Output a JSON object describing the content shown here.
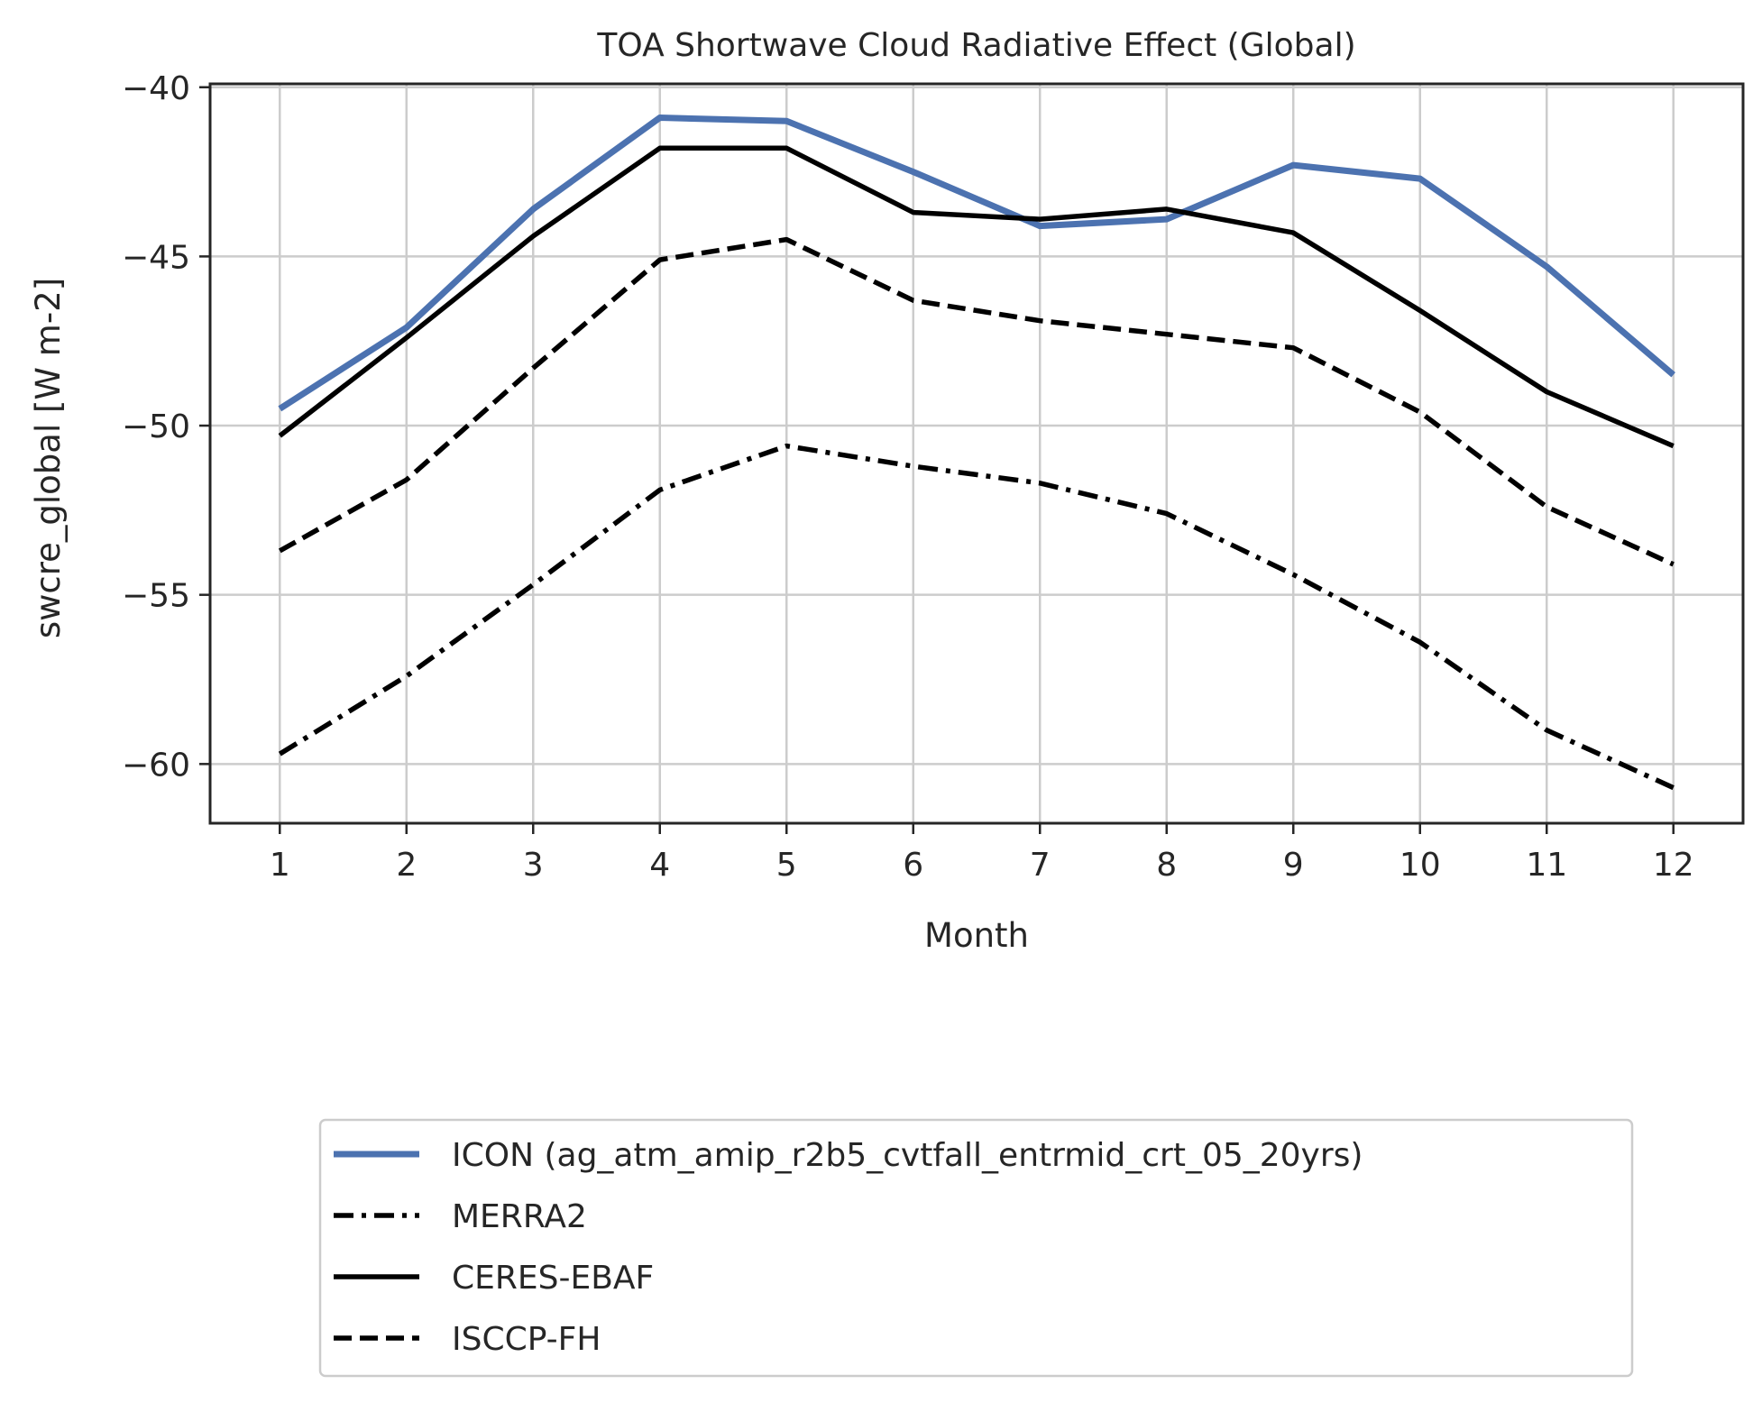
{
  "chart_data": {
    "type": "line",
    "title": "TOA Shortwave Cloud Radiative Effect (Global)",
    "xlabel": "Month",
    "ylabel": "swcre_global [W m-2]",
    "x": [
      1,
      2,
      3,
      4,
      5,
      6,
      7,
      8,
      9,
      10,
      11,
      12
    ],
    "xticks": [
      "1",
      "2",
      "3",
      "4",
      "5",
      "6",
      "7",
      "8",
      "9",
      "10",
      "11",
      "12"
    ],
    "yticks": [
      -40,
      -45,
      -50,
      -55,
      -60
    ],
    "ytick_labels": [
      "−40",
      "−45",
      "−50",
      "−55",
      "−60"
    ],
    "xlim": [
      0.45,
      12.55
    ],
    "ylim": [
      -61.75,
      -39.9
    ],
    "grid": true,
    "legend_position": "below",
    "series": [
      {
        "name": "ICON (ag_atm_amip_r2b5_cvtfall_entrmid_crt_05_20yrs)",
        "color": "#4c72b0",
        "style": "solid",
        "values": [
          -49.5,
          -47.1,
          -43.6,
          -40.9,
          -41.0,
          -42.5,
          -44.1,
          -43.9,
          -42.3,
          -42.7,
          -45.3,
          -48.5
        ]
      },
      {
        "name": "MERRA2",
        "color": "#000000",
        "style": "dashdot",
        "values": [
          -59.7,
          -57.4,
          -54.7,
          -51.9,
          -50.6,
          -51.2,
          -51.7,
          -52.6,
          -54.4,
          -56.4,
          -59.0,
          -60.7
        ]
      },
      {
        "name": "CERES-EBAF",
        "color": "#000000",
        "style": "solid",
        "values": [
          -50.3,
          -47.4,
          -44.4,
          -41.8,
          -41.8,
          -43.7,
          -43.9,
          -43.6,
          -44.3,
          -46.6,
          -49.0,
          -50.6
        ]
      },
      {
        "name": "ISCCP-FH",
        "color": "#000000",
        "style": "dashed",
        "values": [
          -53.7,
          -51.6,
          -48.3,
          -45.1,
          -44.5,
          -46.3,
          -46.9,
          -47.3,
          -47.7,
          -49.6,
          -52.4,
          -54.1
        ]
      }
    ]
  }
}
